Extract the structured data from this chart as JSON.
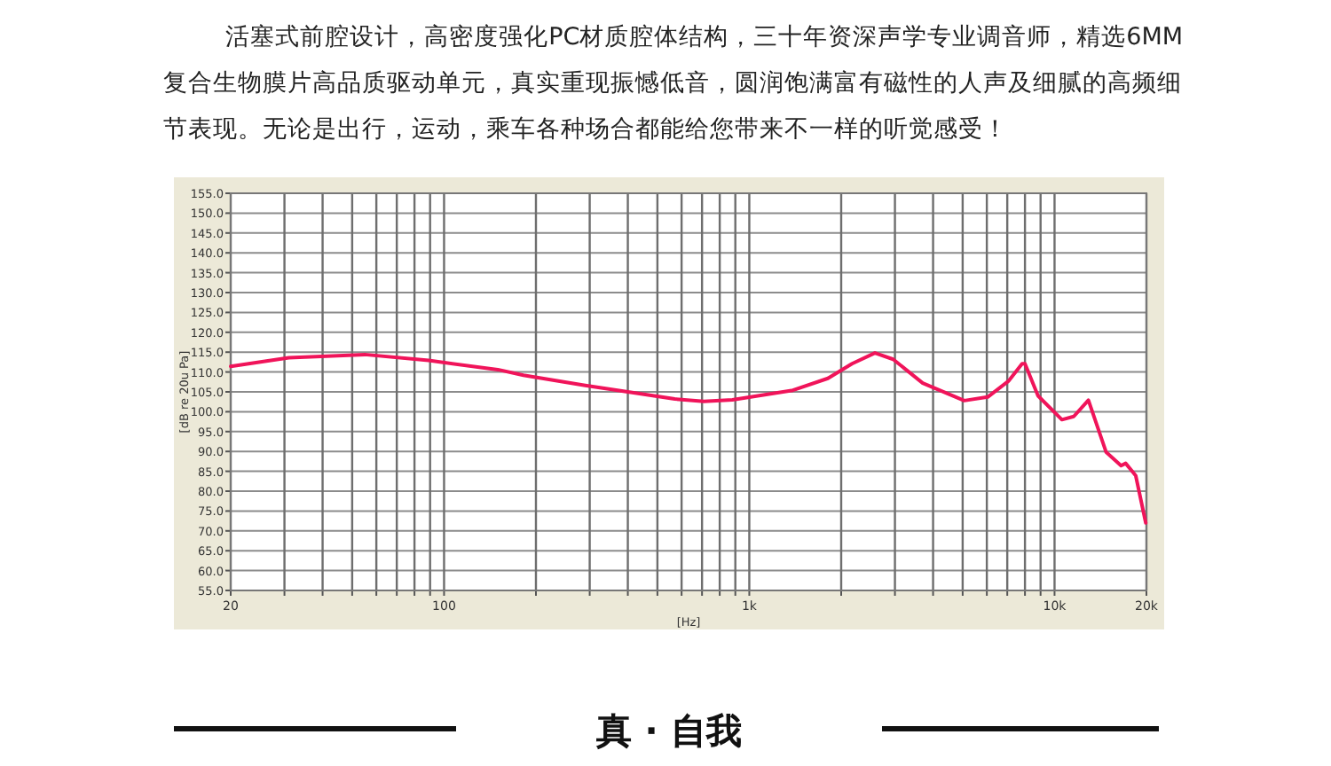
{
  "chart_data": {
    "type": "line",
    "title": "活塞式前腔设计，高密度强化PC材质腔体结构，三十年资深声学专业调音师，精选6MM复合生物膜片高品质驱动单元，真实重现振憾低音，圆润饱满富有磁性的人声及细腻的高频细节表现。无论是出行，运动，乘车各种场合都能给您带来不一样的听觉感受！",
    "xlabel": "[Hz]",
    "ylabel": "[dB re 20u Pa]",
    "annotations": [
      "真 · 自我"
    ],
    "log": "x",
    "grid": true,
    "marker": "none",
    "line_style": "solid",
    "xlim": [
      20,
      20000
    ],
    "ylim": [
      55,
      155
    ],
    "xticks": [
      20,
      {
        "value": 30,
        "label": null
      },
      {
        "value": 40,
        "label": null
      },
      {
        "value": 50,
        "label": null
      },
      {
        "value": 60,
        "label": null
      },
      {
        "value": 70,
        "label": null
      },
      {
        "value": 80,
        "label": null
      },
      {
        "value": 90,
        "label": null
      },
      100,
      {
        "value": 200,
        "label": null
      },
      {
        "value": 300,
        "label": null
      },
      {
        "value": 400,
        "label": null
      },
      {
        "value": 500,
        "label": null
      },
      {
        "value": 600,
        "label": null
      },
      {
        "value": 700,
        "label": null
      },
      {
        "value": 800,
        "label": null
      },
      {
        "value": 900,
        "label": null
      },
      {
        "value": 1000,
        "label": "1k"
      },
      {
        "value": 2000,
        "label": null
      },
      {
        "value": 3000,
        "label": null
      },
      {
        "value": 4000,
        "label": null
      },
      {
        "value": 5000,
        "label": null
      },
      {
        "value": 6000,
        "label": null
      },
      {
        "value": 7000,
        "label": null
      },
      {
        "value": 8000,
        "label": null
      },
      {
        "value": 9000,
        "label": null
      },
      {
        "value": 10000,
        "label": "10k"
      },
      {
        "value": 20000,
        "label": "20k"
      }
    ],
    "yticks": [
      {
        "value": 55,
        "label": "55.0"
      },
      {
        "value": 60,
        "label": "60.0"
      },
      {
        "value": 65,
        "label": "65.0"
      },
      {
        "value": 70,
        "label": "70.0"
      },
      {
        "value": 75,
        "label": "75.0"
      },
      {
        "value": 80,
        "label": "80.0"
      },
      {
        "value": 85,
        "label": "85.0"
      },
      {
        "value": 90,
        "label": "90.0"
      },
      {
        "value": 95,
        "label": "95.0"
      },
      {
        "value": 100,
        "label": "100.0"
      },
      {
        "value": 105,
        "label": "105.0"
      },
      {
        "value": 110,
        "label": "110.0"
      },
      {
        "value": 115,
        "label": "115.0"
      },
      {
        "value": 120,
        "label": "120.0"
      },
      {
        "value": 125,
        "label": "125.0"
      },
      {
        "value": 130,
        "label": "130.0"
      },
      {
        "value": 135,
        "label": "135.0"
      },
      {
        "value": 140,
        "label": "140.0"
      },
      {
        "value": 145,
        "label": "145.0"
      },
      {
        "value": 150,
        "label": "150.0"
      },
      {
        "value": 155,
        "label": "155.0"
      }
    ],
    "series": [
      {
        "color": "#f0145a",
        "x": [
          20,
          31,
          55,
          89,
          150,
          182,
          290,
          570,
          710,
          880,
          1390,
          1810,
          2170,
          2580,
          2960,
          3700,
          5060,
          6040,
          7060,
          7830,
          8000,
          8830,
          10570,
          11560,
          12910,
          14760,
          16520,
          17100,
          18450,
          19900
        ],
        "values": [
          111.4,
          113.6,
          114.4,
          112.9,
          110.6,
          109.2,
          106.6,
          103.2,
          102.6,
          103.0,
          105.4,
          108.4,
          112.1,
          114.8,
          113.2,
          107.2,
          102.8,
          103.7,
          107.7,
          112.1,
          112.1,
          104.0,
          98.0,
          98.8,
          102.9,
          89.8,
          86.4,
          87.0,
          83.9,
          72.0
        ]
      }
    ]
  }
}
